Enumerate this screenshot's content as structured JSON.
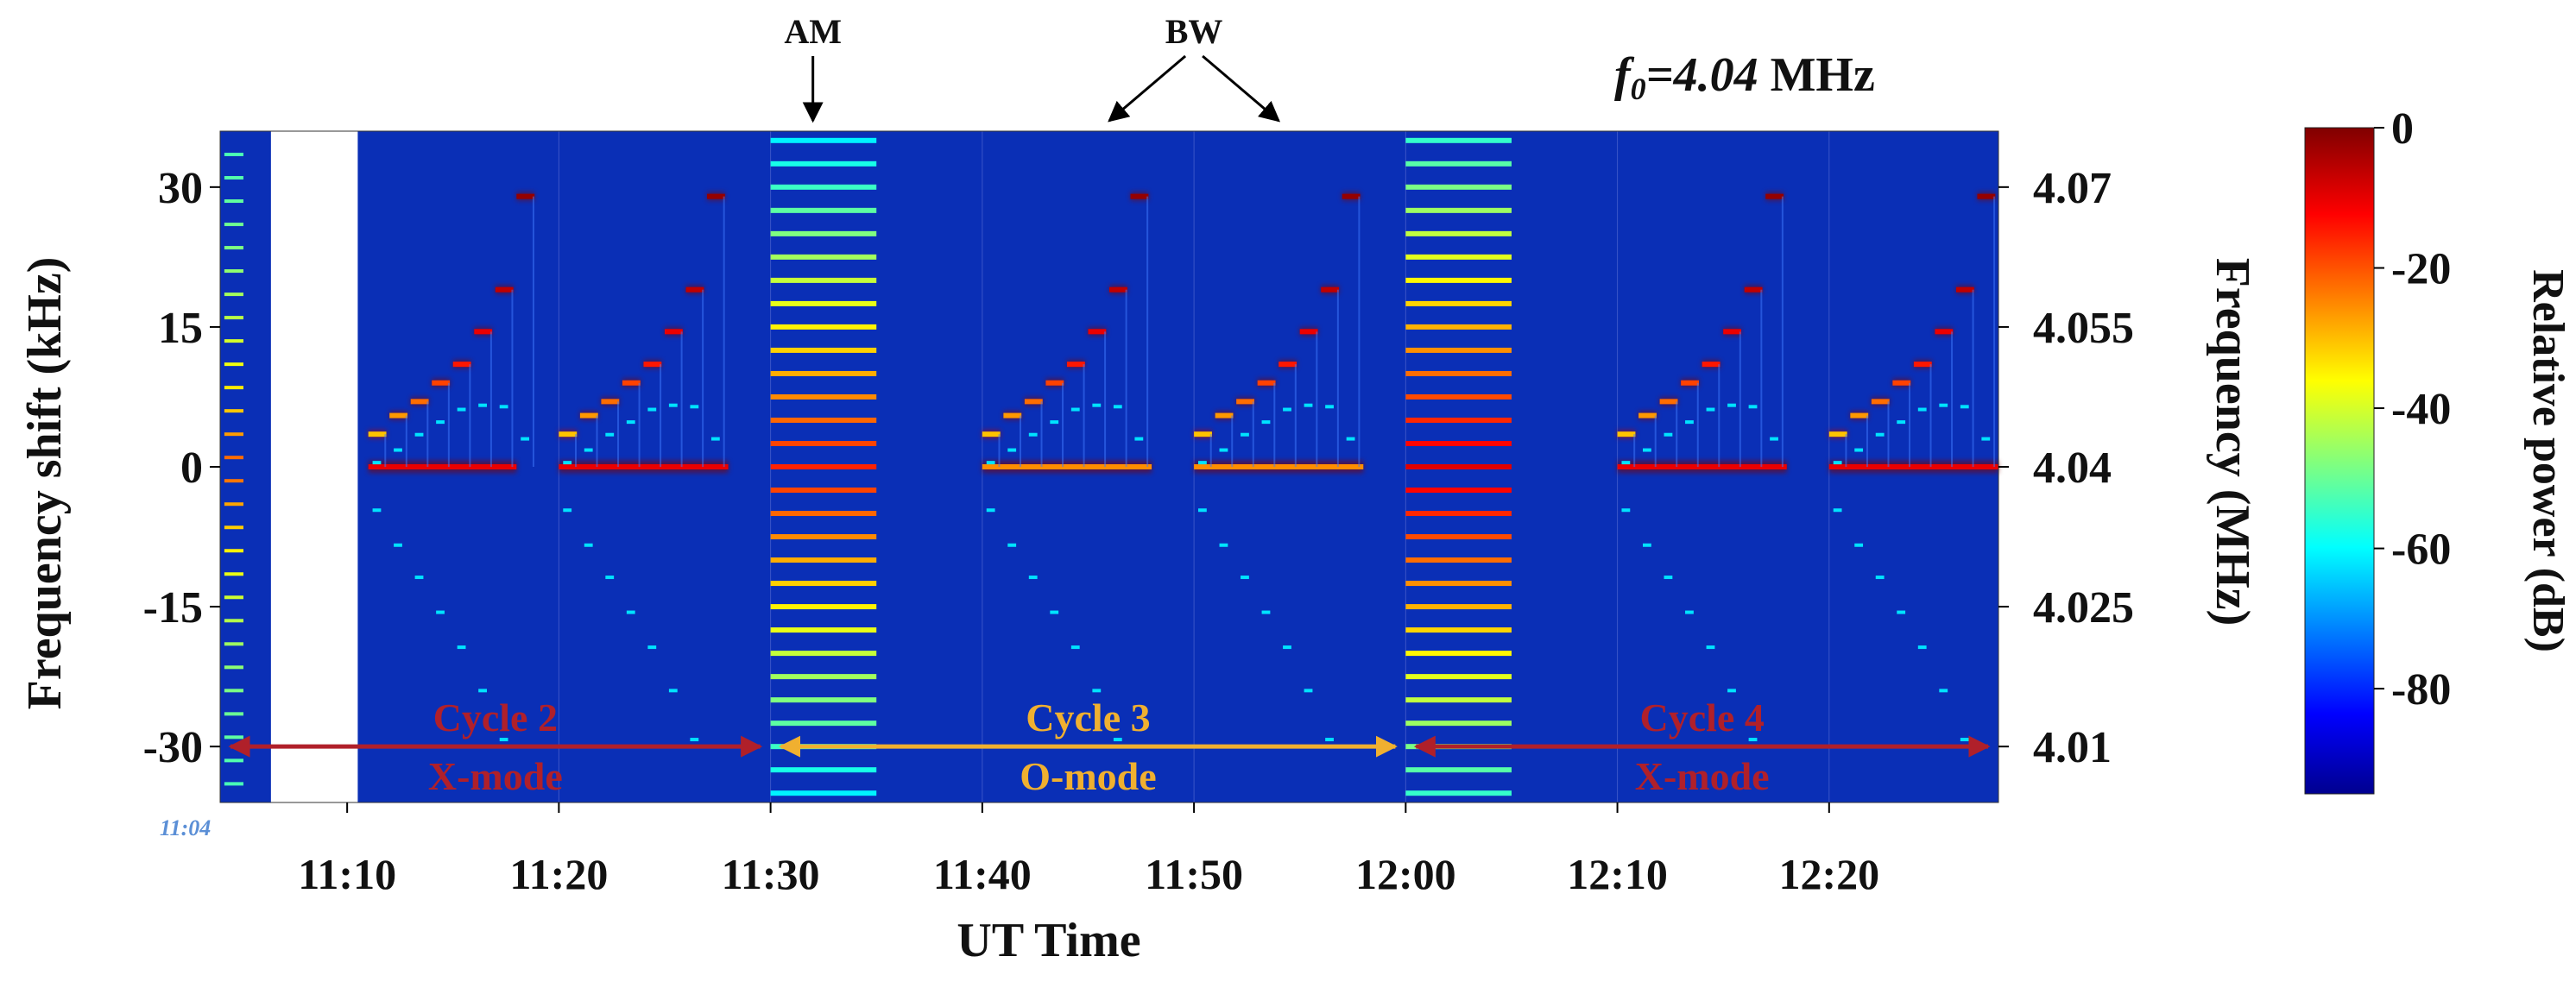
{
  "chart_data": {
    "type": "heatmap",
    "title": {
      "prefix": "f",
      "subscript": "0",
      "value": "=4.04",
      "unit": " MHz"
    },
    "xlabel": "UT Time",
    "ylabel_left": "Frequency shift (kHz)",
    "ylabel_right": "Frequency (MHz)",
    "colorbar_label": "Relative power (dB)",
    "x_start_label": "11:04",
    "x_ticks": [
      {
        "label": "11:10",
        "min": 10
      },
      {
        "label": "11:20",
        "min": 20
      },
      {
        "label": "11:30",
        "min": 30
      },
      {
        "label": "11:40",
        "min": 40
      },
      {
        "label": "11:50",
        "min": 50
      },
      {
        "label": "12:00",
        "min": 60
      },
      {
        "label": "12:10",
        "min": 70
      },
      {
        "label": "12:20",
        "min": 80
      }
    ],
    "xlim_minutes_after_11_00": [
      4,
      88
    ],
    "y_ticks_left": [
      {
        "label": "30",
        "khz": 30
      },
      {
        "label": "15",
        "khz": 15
      },
      {
        "label": "0",
        "khz": 0
      },
      {
        "label": "-15",
        "khz": -15
      },
      {
        "label": "-30",
        "khz": -30
      }
    ],
    "y_ticks_right": [
      {
        "label": "4.07",
        "khz": 30
      },
      {
        "label": "4.055",
        "khz": 15
      },
      {
        "label": "4.04",
        "khz": 0
      },
      {
        "label": "4.025",
        "khz": -15
      },
      {
        "label": "4.01",
        "khz": -30
      }
    ],
    "ylim_khz": [
      -36,
      36
    ],
    "colorbar_ticks": [
      {
        "label": "0",
        "db": 0
      },
      {
        "label": "-20",
        "db": -20
      },
      {
        "label": "-40",
        "db": -40
      },
      {
        "label": "-60",
        "db": -60
      },
      {
        "label": "-80",
        "db": -80
      }
    ],
    "colorbar_range_db": [
      -95,
      0
    ],
    "annotations": {
      "am": {
        "label": "AM",
        "at_min": 32
      },
      "bw": {
        "label": "BW",
        "from_min": 50,
        "to_min": [
          46,
          54
        ]
      }
    },
    "cycles": [
      {
        "name": "Cycle 2",
        "mode": "X-mode",
        "start_min": 4,
        "end_min": 30,
        "color": "#b0202a"
      },
      {
        "name": "Cycle 3",
        "mode": "O-mode",
        "start_min": 30,
        "end_min": 60,
        "color": "#f0b030"
      },
      {
        "name": "Cycle 4",
        "mode": "X-mode",
        "start_min": 60,
        "end_min": 88,
        "color": "#b0202a"
      }
    ],
    "data_gap": {
      "start_min": 6.4,
      "end_min": 10.5
    },
    "am_blocks": [
      {
        "start_min": 30,
        "end_min": 35,
        "sideband_step_khz": 2.5
      },
      {
        "start_min": 60,
        "end_min": 65,
        "sideband_step_khz": 2.5
      }
    ],
    "carrier_segments": [
      {
        "start_min": 11,
        "end_min": 18,
        "khz": 0,
        "db": -10
      },
      {
        "start_min": 20,
        "end_min": 28,
        "khz": 0,
        "db": -10
      },
      {
        "start_min": 40,
        "end_min": 48,
        "khz": 0,
        "db": -25
      },
      {
        "start_min": 50,
        "end_min": 58,
        "khz": 0,
        "db": -25
      },
      {
        "start_min": 70,
        "end_min": 78,
        "khz": 0,
        "db": -10
      },
      {
        "start_min": 80,
        "end_min": 88,
        "khz": 0,
        "db": -10
      }
    ],
    "staircase_steps": [
      {
        "offset_min": 0,
        "khz": 3.5
      },
      {
        "offset_min": 1,
        "khz": 5.5
      },
      {
        "offset_min": 2,
        "khz": 7
      },
      {
        "offset_min": 3,
        "khz": 9
      },
      {
        "offset_min": 4,
        "khz": 11
      },
      {
        "offset_min": 5,
        "khz": 14.5
      },
      {
        "offset_min": 6,
        "khz": 19
      },
      {
        "offset_min": 7,
        "khz": 29
      }
    ],
    "staircase_starts_min": [
      11,
      20,
      40,
      50,
      70,
      80
    ],
    "colors": {
      "background": "#0a2fb6",
      "axis": "#000000",
      "gap_fill": "#ffffff",
      "start_label": "#5b8fd6"
    }
  }
}
